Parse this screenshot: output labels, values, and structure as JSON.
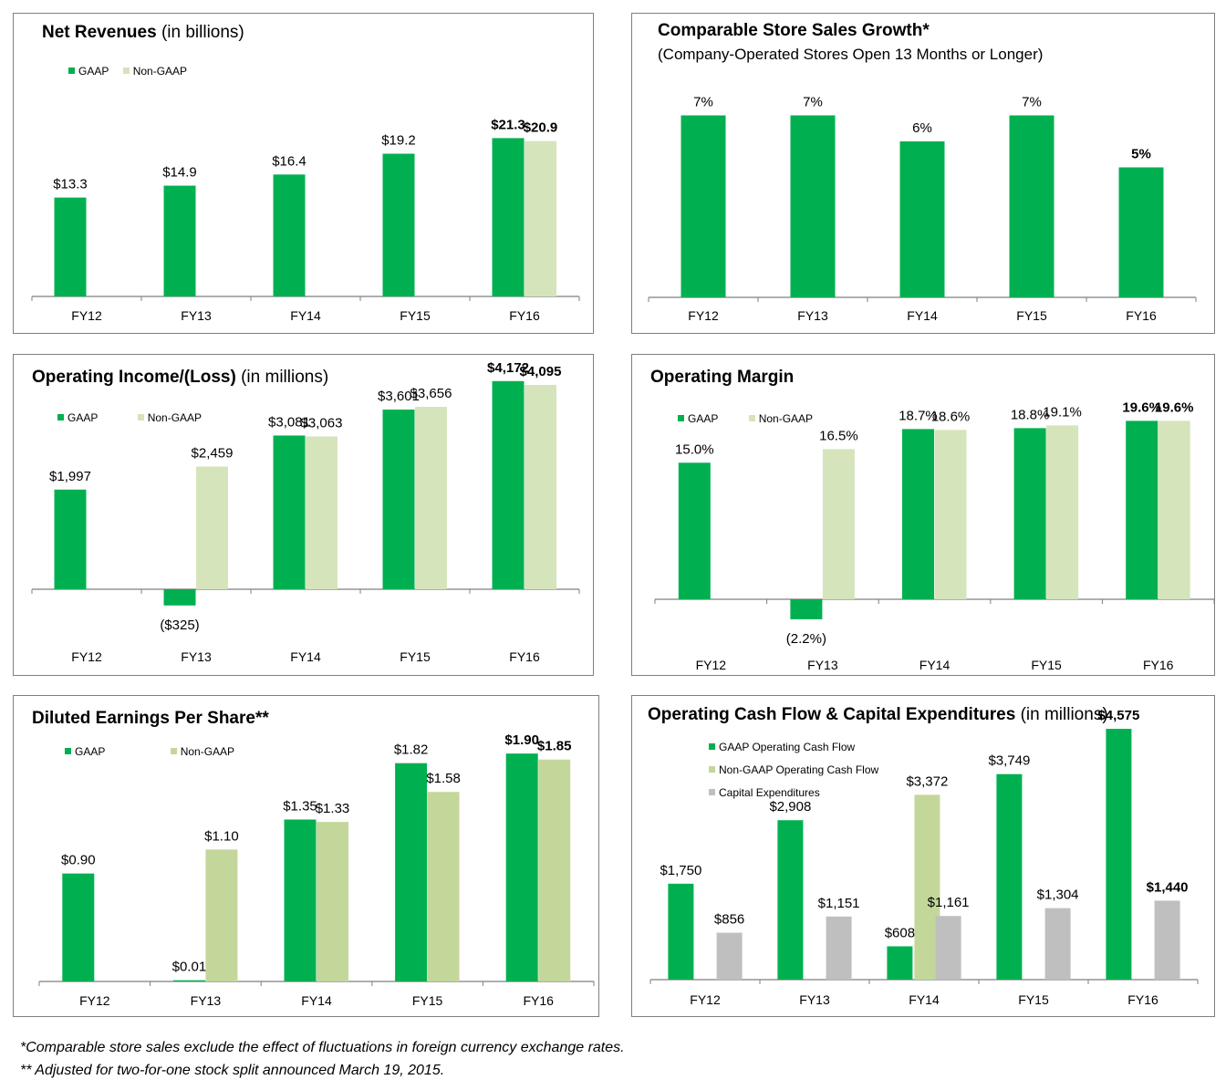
{
  "colors": {
    "gaap": "#00b050",
    "nongaap": "#d6e4bc",
    "nongaap_eps": "#c4d79b",
    "capex": "#bfbfbf",
    "axis": "#7f7f7f"
  },
  "footnotes": [
    "*Comparable store sales exclude the effect of fluctuations in foreign currency exchange rates.",
    "** Adjusted for  two-for-one stock split announced March 19, 2015."
  ],
  "chart_data": [
    {
      "id": "net_revenues",
      "type": "bar",
      "title": "Net Revenues",
      "title_suffix": "(in billions)",
      "categories": [
        "FY12",
        "FY13",
        "FY14",
        "FY15",
        "FY16"
      ],
      "series": [
        {
          "name": "GAAP",
          "values": [
            13.3,
            14.9,
            16.4,
            19.2,
            21.3
          ],
          "labels": [
            "$13.3",
            "$14.9",
            "$16.4",
            "$19.2",
            "$21.3"
          ]
        },
        {
          "name": "Non-GAAP",
          "values": [
            null,
            null,
            null,
            null,
            20.9
          ],
          "labels": [
            null,
            null,
            null,
            null,
            "$20.9"
          ]
        }
      ],
      "bold_last": true
    },
    {
      "id": "comp_sales",
      "type": "bar",
      "title": "Comparable Store Sales Growth*",
      "subtitle": "(Company-Operated Stores Open 13 Months or Longer)",
      "categories": [
        "FY12",
        "FY13",
        "FY14",
        "FY15",
        "FY16"
      ],
      "series": [
        {
          "name": "",
          "values": [
            7,
            7,
            6,
            7,
            5
          ],
          "labels": [
            "7%",
            "7%",
            "6%",
            "7%",
            "5%"
          ]
        }
      ],
      "bold_last": true
    },
    {
      "id": "operating_income",
      "type": "bar",
      "title": "Operating Income/(Loss)",
      "title_suffix": "(in millions)",
      "categories": [
        "FY12",
        "FY13",
        "FY14",
        "FY15",
        "FY16"
      ],
      "series": [
        {
          "name": "GAAP",
          "values": [
            1997,
            -325,
            3081,
            3601,
            4172
          ],
          "labels": [
            "$1,997",
            "($325)",
            "$3,081",
            "$3,601",
            "$4,172"
          ]
        },
        {
          "name": "Non-GAAP",
          "values": [
            null,
            2459,
            3063,
            3656,
            4095
          ],
          "labels": [
            null,
            "$2,459",
            "$3,063",
            "$3,656",
            "$4,095"
          ]
        }
      ],
      "bold_last": true
    },
    {
      "id": "operating_margin",
      "type": "bar",
      "title": "Operating Margin",
      "categories": [
        "FY12",
        "FY13",
        "FY14",
        "FY15",
        "FY16"
      ],
      "series": [
        {
          "name": "GAAP",
          "values": [
            15.0,
            -2.2,
            18.7,
            18.8,
            19.6
          ],
          "labels": [
            "15.0%",
            "(2.2%)",
            "18.7%",
            "18.8%",
            "19.6%"
          ]
        },
        {
          "name": "Non-GAAP",
          "values": [
            null,
            16.5,
            18.6,
            19.1,
            19.6
          ],
          "labels": [
            null,
            "16.5%",
            "18.6%",
            "19.1%",
            "19.6%"
          ]
        }
      ],
      "bold_last": true
    },
    {
      "id": "eps",
      "type": "bar",
      "title": "Diluted Earnings Per Share**",
      "categories": [
        "FY12",
        "FY13",
        "FY14",
        "FY15",
        "FY16"
      ],
      "series": [
        {
          "name": "GAAP",
          "values": [
            0.9,
            0.01,
            1.35,
            1.82,
            1.9
          ],
          "labels": [
            "$0.90",
            "$0.01",
            "$1.35",
            "$1.82",
            "$1.90"
          ]
        },
        {
          "name": "Non-GAAP",
          "values": [
            null,
            1.1,
            1.33,
            1.58,
            1.85
          ],
          "labels": [
            null,
            "$1.10",
            "$1.33",
            "$1.58",
            "$1.85"
          ]
        }
      ],
      "bold_last": true
    },
    {
      "id": "cash_flow",
      "type": "bar",
      "title": "Operating Cash Flow & Capital Expenditures",
      "title_suffix": "(in millions)",
      "categories": [
        "FY12",
        "FY13",
        "FY14",
        "FY15",
        "FY16"
      ],
      "series": [
        {
          "name": "GAAP Operating Cash Flow",
          "values": [
            1750,
            2908,
            608,
            3749,
            4575
          ],
          "labels": [
            "$1,750",
            "$2,908",
            "$608",
            "$3,749",
            "$4,575"
          ]
        },
        {
          "name": "Non-GAAP Operating Cash Flow",
          "values": [
            null,
            null,
            3372,
            null,
            null
          ],
          "labels": [
            null,
            null,
            "$3,372",
            null,
            null
          ]
        },
        {
          "name": "Capital Expenditures",
          "values": [
            856,
            1151,
            1161,
            1304,
            1440
          ],
          "labels": [
            "$856",
            "$1,151",
            "$1,161",
            "$1,304",
            "$1,440"
          ]
        }
      ],
      "bold_last": true
    }
  ]
}
